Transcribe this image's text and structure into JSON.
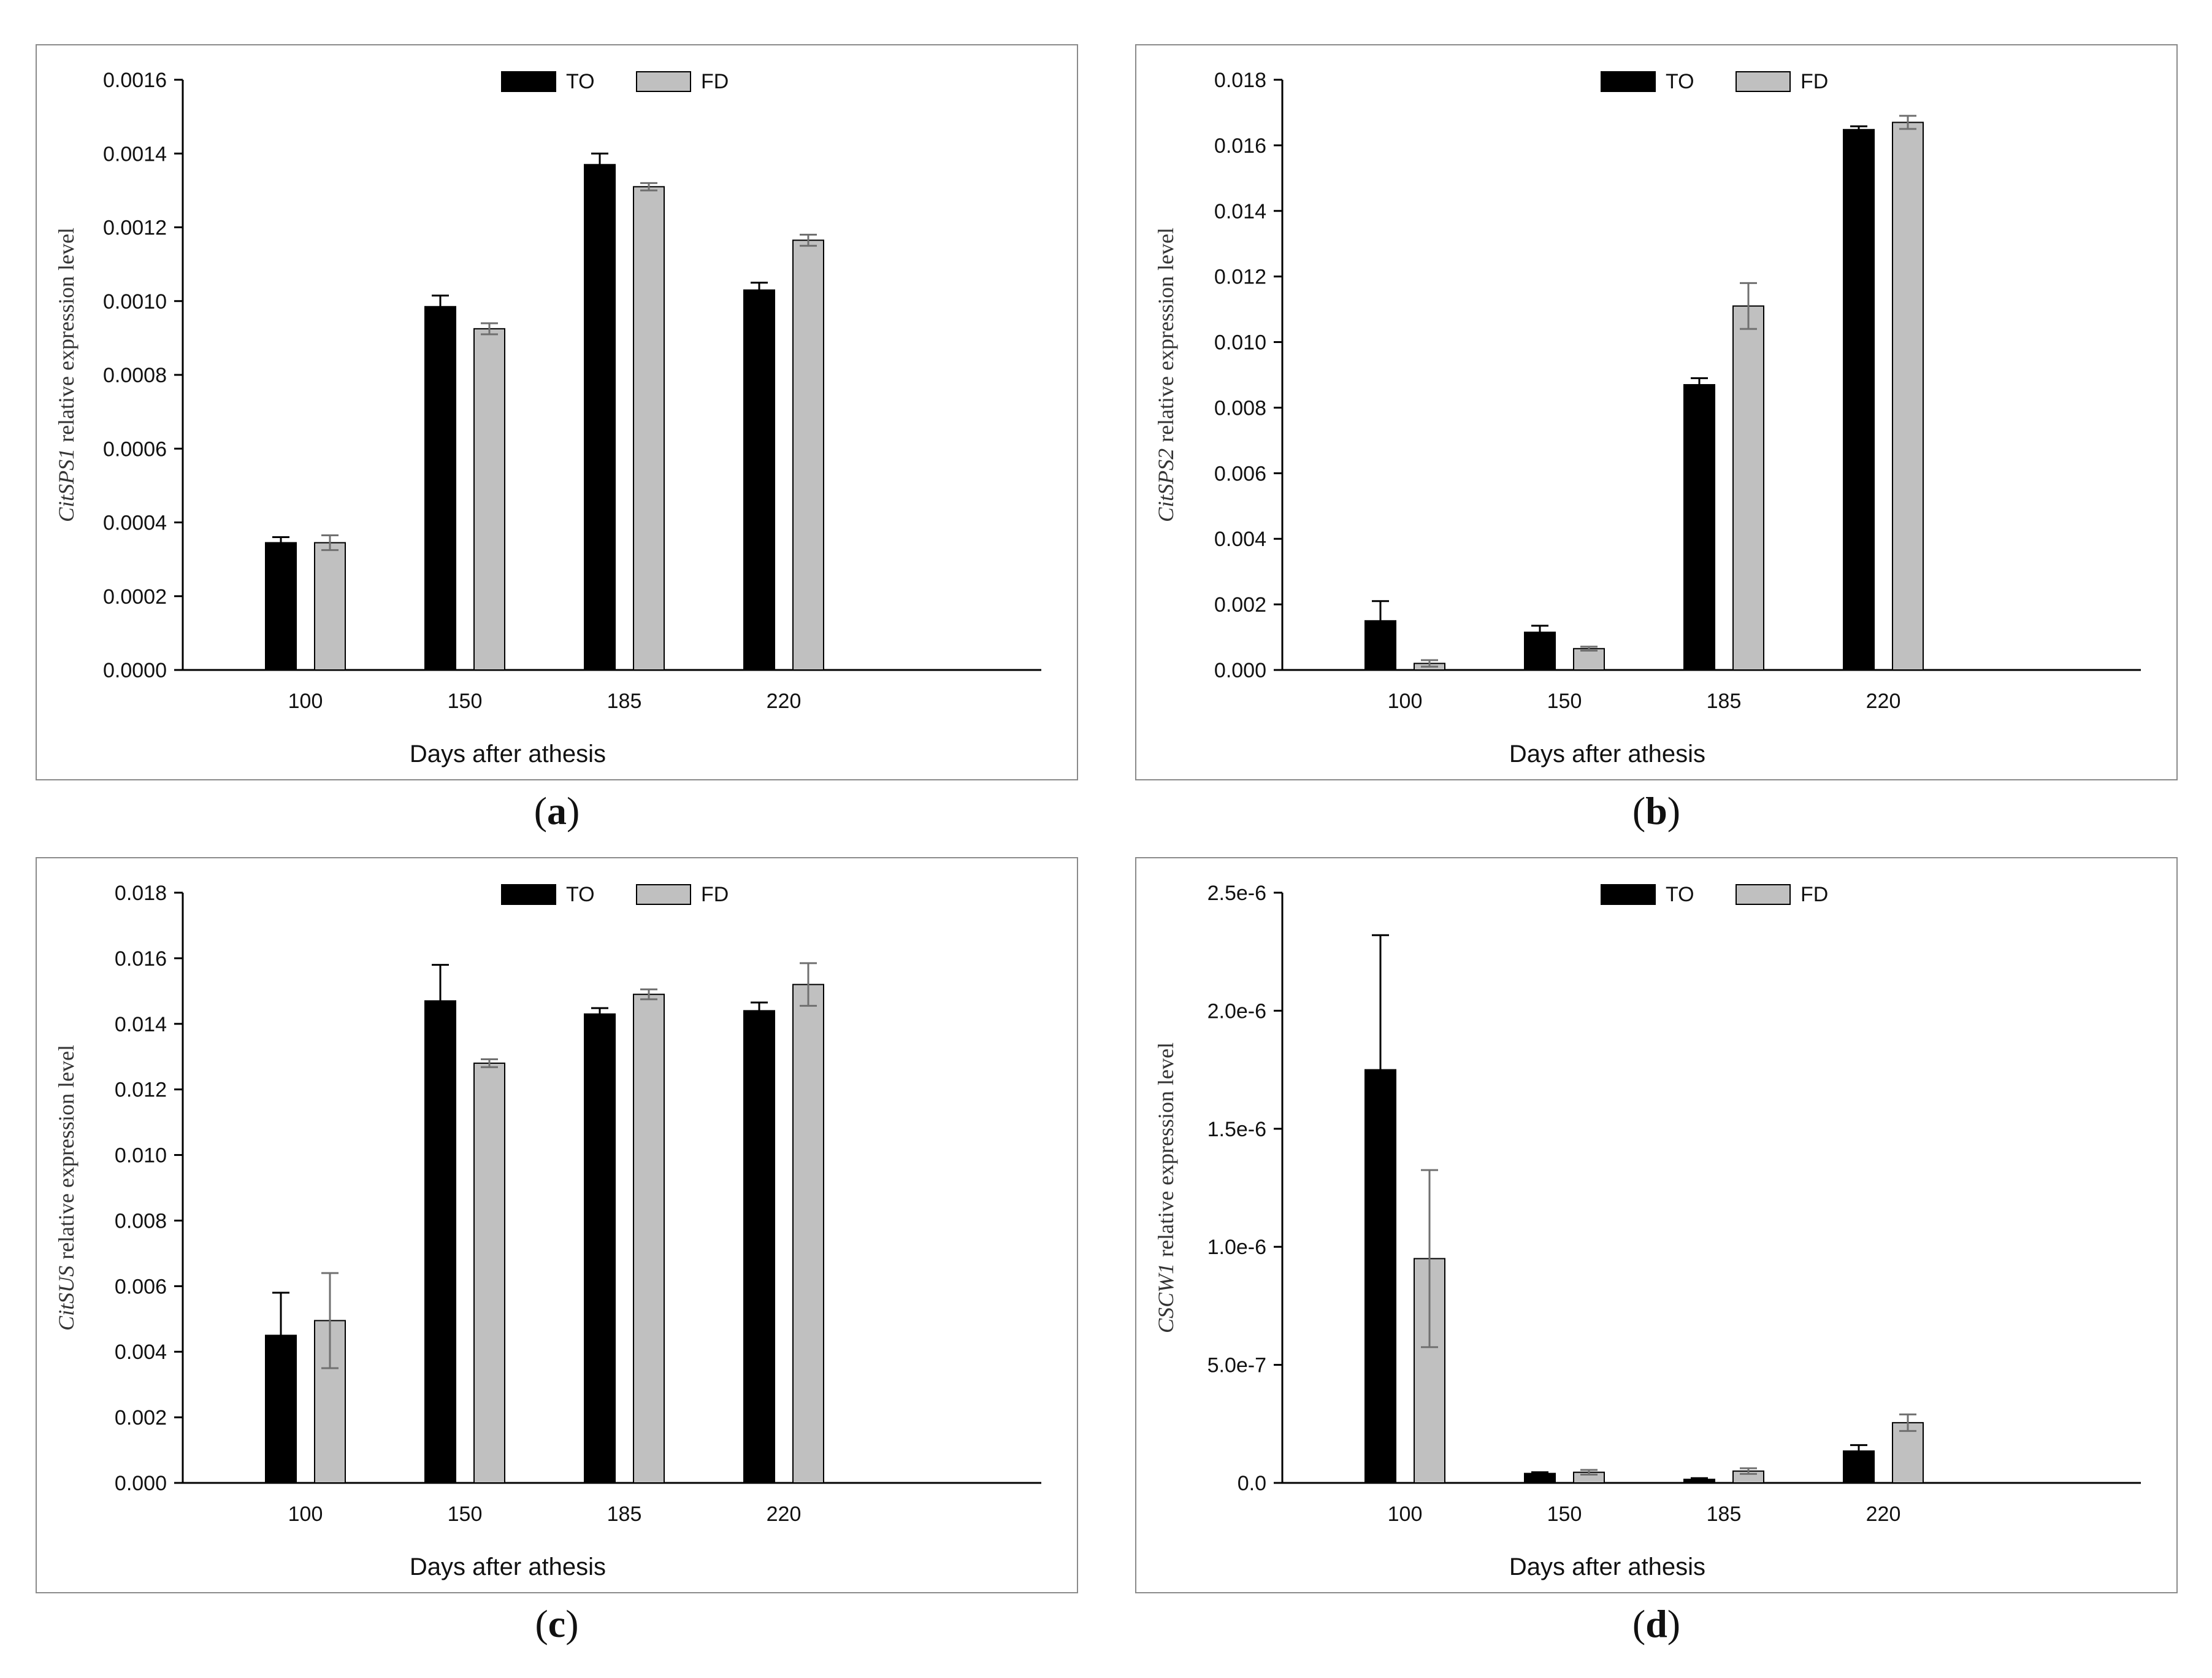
{
  "figure": {
    "xlabel": "Days after athesis",
    "legend": [
      "TO",
      "FD"
    ],
    "colors": {
      "TO": "#000000",
      "FD": "#c0c0c0",
      "axis": "#000000",
      "errorbar_TO": "#000000",
      "errorbar_FD": "#707070"
    }
  },
  "chart_data": [
    {
      "type": "bar",
      "panel_label": "a",
      "categories": [
        "100",
        "150",
        "185",
        "220"
      ],
      "ylabel_gene": "CitSPS1",
      "ylabel": "relative expression level",
      "xlabel": "Days after athesis",
      "ylim": [
        0,
        0.0016
      ],
      "yticks": [
        "0.0000",
        "0.0002",
        "0.0004",
        "0.0006",
        "0.0008",
        "0.0010",
        "0.0012",
        "0.0014",
        "0.0016"
      ],
      "series": [
        {
          "name": "TO",
          "values": [
            0.000345,
            0.000985,
            0.00137,
            0.00103
          ],
          "errors": [
            1.5e-05,
            3e-05,
            3e-05,
            2e-05
          ]
        },
        {
          "name": "FD",
          "values": [
            0.000345,
            0.000925,
            0.00131,
            0.001165
          ],
          "errors": [
            2e-05,
            1.5e-05,
            1e-05,
            1.5e-05
          ]
        }
      ]
    },
    {
      "type": "bar",
      "panel_label": "b",
      "categories": [
        "100",
        "150",
        "185",
        "220"
      ],
      "ylabel_gene": "CitSPS2",
      "ylabel": "relative expression level",
      "xlabel": "Days after athesis",
      "ylim": [
        0,
        0.018
      ],
      "yticks": [
        "0.000",
        "0.002",
        "0.004",
        "0.006",
        "0.008",
        "0.010",
        "0.012",
        "0.014",
        "0.016",
        "0.018"
      ],
      "series": [
        {
          "name": "TO",
          "values": [
            0.0015,
            0.00115,
            0.0087,
            0.01648
          ],
          "errors": [
            0.0006,
            0.0002,
            0.0002,
            0.0001
          ]
        },
        {
          "name": "FD",
          "values": [
            0.0002,
            0.00065,
            0.0111,
            0.0167
          ],
          "errors": [
            0.0001,
            6e-05,
            0.0007,
            0.0002
          ]
        }
      ]
    },
    {
      "type": "bar",
      "panel_label": "c",
      "categories": [
        "100",
        "150",
        "185",
        "220"
      ],
      "ylabel_gene": "CitSUS",
      "ylabel": "relative expression level",
      "xlabel": "Days after athesis",
      "ylim": [
        0,
        0.018
      ],
      "yticks": [
        "0.000",
        "0.002",
        "0.004",
        "0.006",
        "0.008",
        "0.010",
        "0.012",
        "0.014",
        "0.016",
        "0.018"
      ],
      "series": [
        {
          "name": "TO",
          "values": [
            0.0045,
            0.0147,
            0.0143,
            0.0144
          ],
          "errors": [
            0.0013,
            0.0011,
            0.00018,
            0.00025
          ]
        },
        {
          "name": "FD",
          "values": [
            0.00495,
            0.0128,
            0.0149,
            0.0152
          ],
          "errors": [
            0.00145,
            0.00012,
            0.00015,
            0.00065
          ]
        }
      ]
    },
    {
      "type": "bar",
      "panel_label": "d",
      "categories": [
        "100",
        "150",
        "185",
        "220"
      ],
      "ylabel_gene": "CSCW1",
      "ylabel": "relative expression level",
      "xlabel": "Days after athesis",
      "ylim": [
        0,
        2.5e-06
      ],
      "yticks": [
        "0.0",
        "5.0e-7",
        "1.0e-6",
        "1.5e-6",
        "2.0e-6",
        "2.5e-6"
      ],
      "series": [
        {
          "name": "TO",
          "values": [
            1.75e-06,
            4e-08,
            1.5e-08,
            1.35e-07
          ],
          "errors": [
            5.7e-07,
            5e-09,
            5e-09,
            2.5e-08
          ]
        },
        {
          "name": "FD",
          "values": [
            9.5e-07,
            4.5e-08,
            5e-08,
            2.55e-07
          ],
          "errors": [
            3.75e-07,
            1e-08,
            1.2e-08,
            3.5e-08
          ]
        }
      ]
    }
  ]
}
